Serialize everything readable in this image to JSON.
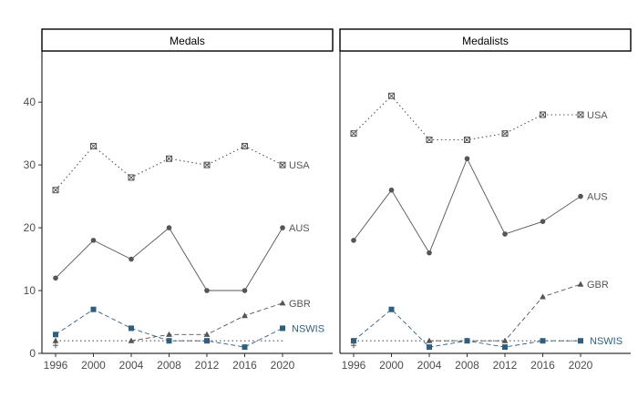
{
  "chart_data": [
    {
      "type": "line",
      "strip_title": "Medals",
      "x": [
        1996,
        2000,
        2004,
        2008,
        2012,
        2016,
        2020
      ],
      "y_ticks": [
        0,
        10,
        20,
        30,
        40
      ],
      "ylim": [
        0,
        48
      ],
      "grid": false,
      "series": [
        {
          "name": "USA",
          "values": [
            26,
            33,
            28,
            31,
            30,
            33,
            30
          ],
          "color": "#555555",
          "dash": "dotted",
          "marker": "square-x"
        },
        {
          "name": "AUS",
          "values": [
            12,
            18,
            15,
            20,
            10,
            10,
            20
          ],
          "color": "#555555",
          "dash": "solid",
          "marker": "circle"
        },
        {
          "name": "GBR",
          "values": [
            2,
            null,
            2,
            3,
            3,
            6,
            8
          ],
          "color": "#555555",
          "dash": "dashed",
          "marker": "triangle"
        },
        {
          "name": "NSWIS",
          "values": [
            3,
            7,
            4,
            2,
            2,
            1,
            4
          ],
          "color": "#2f5f7f",
          "dash": "dashed",
          "marker": "square"
        },
        {
          "name": "",
          "values": [
            2,
            2,
            2,
            2,
            2,
            2,
            2
          ],
          "color": "#555555",
          "dash": "dotted",
          "marker": "none"
        }
      ]
    },
    {
      "type": "line",
      "strip_title": "Medalists",
      "x": [
        1996,
        2000,
        2004,
        2008,
        2012,
        2016,
        2020
      ],
      "y_ticks": [
        0,
        10,
        20,
        30,
        40
      ],
      "ylim": [
        0,
        48
      ],
      "grid": false,
      "series": [
        {
          "name": "USA",
          "values": [
            35,
            41,
            34,
            34,
            35,
            38,
            38
          ],
          "color": "#555555",
          "dash": "dotted",
          "marker": "square-x"
        },
        {
          "name": "AUS",
          "values": [
            18,
            26,
            16,
            31,
            19,
            21,
            25
          ],
          "color": "#555555",
          "dash": "solid",
          "marker": "circle"
        },
        {
          "name": "GBR",
          "values": [
            2,
            null,
            2,
            2,
            2,
            9,
            11
          ],
          "color": "#555555",
          "dash": "dashed",
          "marker": "triangle"
        },
        {
          "name": "NSWIS",
          "values": [
            2,
            7,
            1,
            2,
            1,
            2,
            2
          ],
          "color": "#2f5f7f",
          "dash": "dashed",
          "marker": "square"
        },
        {
          "name": "",
          "values": [
            2,
            2,
            2,
            2,
            2,
            2,
            2
          ],
          "color": "#555555",
          "dash": "dotted",
          "marker": "none"
        }
      ]
    }
  ]
}
